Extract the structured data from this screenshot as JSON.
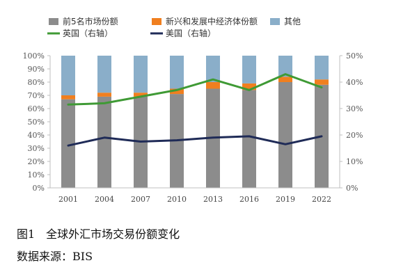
{
  "chart_data": {
    "type": "bar",
    "title": "",
    "categories": [
      "2001",
      "2004",
      "2007",
      "2010",
      "2013",
      "2016",
      "2019",
      "2022"
    ],
    "stacked_series": [
      {
        "name": "前5名市场份额",
        "color": "#8c8c8c",
        "values": [
          67,
          69,
          69,
          71,
          75,
          74,
          80,
          78
        ]
      },
      {
        "name": "新兴和发展中经济体份额",
        "color": "#f07f1f",
        "values": [
          3,
          3,
          3,
          4,
          5,
          5,
          4,
          4
        ]
      },
      {
        "name": "其他",
        "color": "#8aaec9",
        "values": [
          30,
          28,
          28,
          25,
          20,
          21,
          16,
          18
        ]
      }
    ],
    "line_series": [
      {
        "name": "英国（右轴）",
        "color": "#3f9a35",
        "values": [
          31.5,
          32,
          34.5,
          37,
          41,
          37,
          43,
          38
        ]
      },
      {
        "name": "美国（右轴）",
        "color": "#1f2b57",
        "values": [
          16,
          19,
          17.5,
          18,
          19,
          19.5,
          16.5,
          19.5
        ]
      }
    ],
    "left_axis": {
      "ticks": [
        "0%",
        "10%",
        "20%",
        "30%",
        "40%",
        "50%",
        "60%",
        "70%",
        "80%",
        "90%",
        "100%"
      ],
      "ylim": [
        0,
        100
      ]
    },
    "right_axis": {
      "ticks": [
        "0%",
        "10%",
        "20%",
        "30%",
        "40%",
        "50%"
      ],
      "ylim": [
        0,
        50
      ]
    },
    "grid": false,
    "legend_position": "top-left"
  },
  "caption": {
    "figure_label": "图1　全球外汇市场交易份额变化",
    "source": "数据来源：BIS"
  }
}
